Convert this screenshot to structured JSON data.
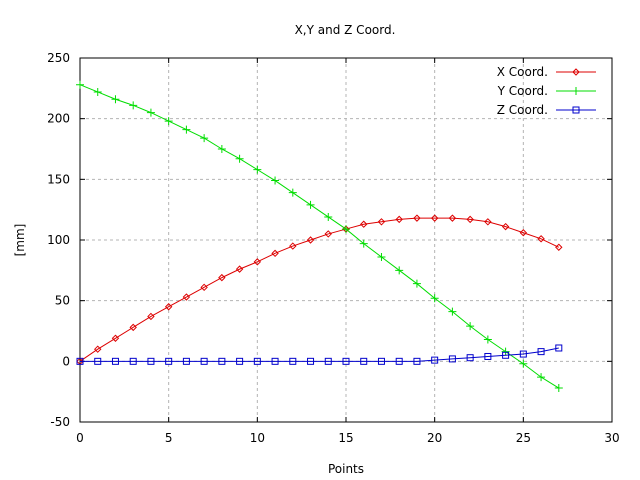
{
  "chart_data": {
    "type": "line",
    "title": "X,Y and Z Coord.",
    "xlabel": "Points",
    "ylabel": "[mm]",
    "xlim": [
      0,
      30
    ],
    "ylim": [
      -50,
      250
    ],
    "xticks": [
      0,
      5,
      10,
      15,
      20,
      25,
      30
    ],
    "yticks": [
      -50,
      0,
      50,
      100,
      150,
      200,
      250
    ],
    "grid": true,
    "legend_position": "top-right",
    "x": [
      0,
      1,
      2,
      3,
      4,
      5,
      6,
      7,
      8,
      9,
      10,
      11,
      12,
      13,
      14,
      15,
      16,
      17,
      18,
      19,
      20,
      21,
      22,
      23,
      24,
      25,
      26,
      27
    ],
    "series": [
      {
        "name": "X Coord.",
        "color": "#dd0000",
        "marker": "diamond",
        "values": [
          0,
          10,
          19,
          28,
          37,
          45,
          53,
          61,
          69,
          76,
          82,
          89,
          95,
          100,
          105,
          109,
          113,
          115,
          117,
          118,
          118,
          118,
          117,
          115,
          111,
          106,
          101,
          94
        ]
      },
      {
        "name": "Y Coord.",
        "color": "#00dd00",
        "marker": "plus",
        "values": [
          228,
          222,
          216,
          211,
          205,
          198,
          191,
          184,
          175,
          167,
          158,
          149,
          139,
          129,
          119,
          109,
          97,
          86,
          75,
          64,
          52,
          41,
          29,
          18,
          8,
          -2,
          -13,
          -22
        ]
      },
      {
        "name": "Z Coord.",
        "color": "#0000cc",
        "marker": "square",
        "values": [
          0,
          0,
          0,
          0,
          0,
          0,
          0,
          0,
          0,
          0,
          0,
          0,
          0,
          0,
          0,
          0,
          0,
          0,
          0,
          0,
          1,
          2,
          3,
          4,
          5,
          6,
          8,
          11
        ]
      }
    ]
  }
}
